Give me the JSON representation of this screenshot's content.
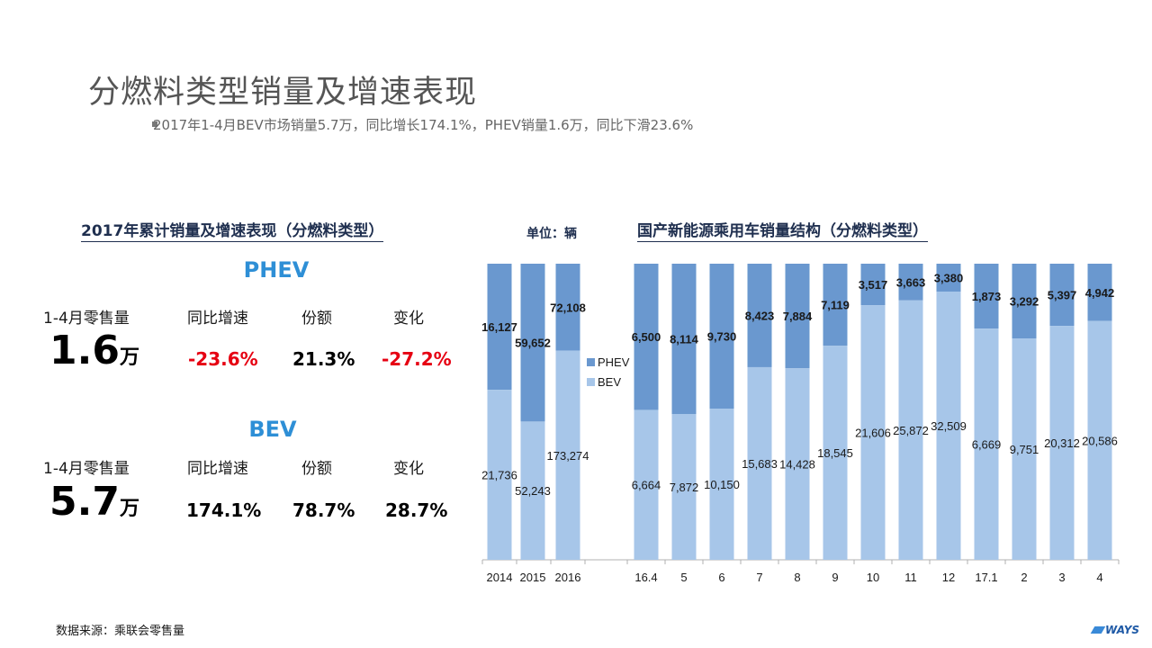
{
  "title": "分燃料类型销量及增速表现",
  "bullet": "2017年1-4月BEV市场销量5.7万，同比增长174.1%，PHEV销量1.6万，同比下滑23.6%",
  "left_panel": {
    "title": "2017年累计销量及增速表现（分燃料类型）",
    "phev": {
      "name": "PHEV",
      "headers": [
        "1-4月零售量",
        "同比增速",
        "份额",
        "变化"
      ],
      "volume": "1.6",
      "volume_unit": "万",
      "growth": "-23.6%",
      "share": "21.3%",
      "change": "-27.2%"
    },
    "bev": {
      "name": "BEV",
      "headers": [
        "1-4月零售量",
        "同比增速",
        "份额",
        "变化"
      ],
      "volume": "5.7",
      "volume_unit": "万",
      "growth": "174.1%",
      "share": "78.7%",
      "change": "28.7%"
    }
  },
  "unit_label": "单位：辆",
  "right_title": "国产新能源乘用车销量结构（分燃料类型）",
  "footer": "数据来源：乘联会零售量",
  "logo": "WAYS",
  "colors": {
    "phev": "#6a98cf",
    "bev": "#a7c6e9",
    "accent_blue": "#2e8fd6",
    "negative_red": "#e60012",
    "title_navy": "#1f2f4f"
  },
  "chart_data": {
    "type": "bar",
    "stacked": true,
    "percent_stacked": true,
    "categories": [
      "2014",
      "2015",
      "2016",
      "16.4",
      "5",
      "6",
      "7",
      "8",
      "9",
      "10",
      "11",
      "12",
      "17.1",
      "2",
      "3",
      "4"
    ],
    "series": [
      {
        "name": "PHEV",
        "values": [
          16127,
          59652,
          72108,
          6500,
          8114,
          9730,
          8423,
          7884,
          7119,
          3517,
          3663,
          3380,
          1873,
          3292,
          5397,
          4942
        ]
      },
      {
        "name": "BEV",
        "values": [
          21736,
          52243,
          173274,
          6664,
          7872,
          10150,
          15683,
          14428,
          18545,
          21606,
          25872,
          32509,
          6669,
          9751,
          20312,
          20586
        ]
      }
    ],
    "legend": [
      "PHEV",
      "BEV"
    ],
    "legend_position": "middle-left"
  }
}
